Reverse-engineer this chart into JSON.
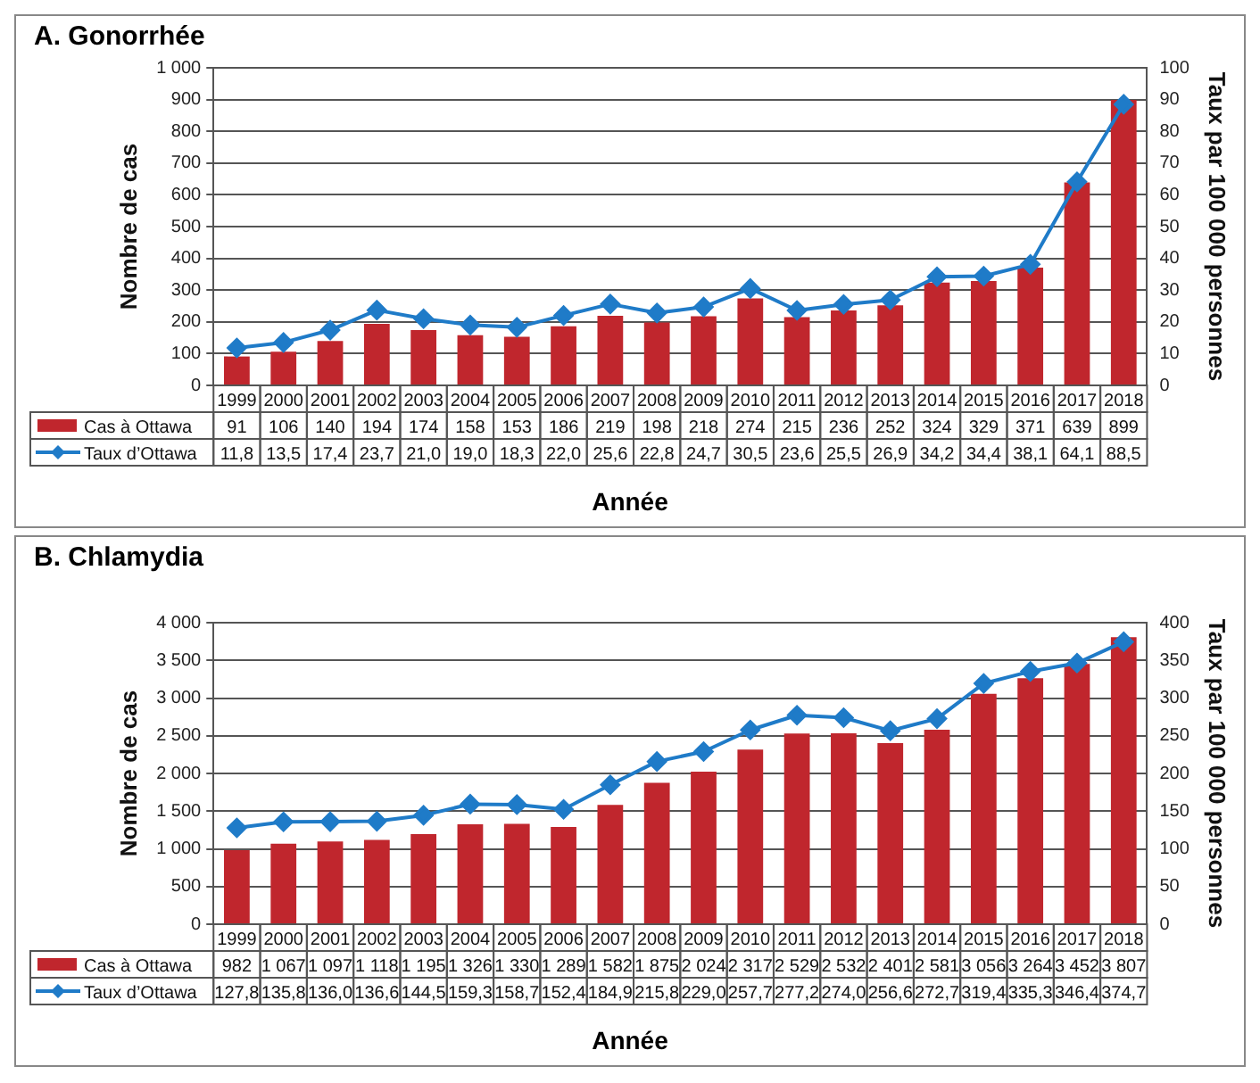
{
  "chart_data": [
    {
      "type": "bar",
      "title": "A. Gonorrhée",
      "xlabel": "Année",
      "ylabel": "Nombre de cas",
      "y2label": "Taux par 100 000 personnes",
      "categories": [
        "1999",
        "2000",
        "2001",
        "2002",
        "2003",
        "2004",
        "2005",
        "2006",
        "2007",
        "2008",
        "2009",
        "2010",
        "2011",
        "2012",
        "2013",
        "2014",
        "2015",
        "2016",
        "2017",
        "2018"
      ],
      "series": [
        {
          "name": "Cas à Ottawa",
          "color": "#c0262d",
          "values": [
            91,
            106,
            140,
            194,
            174,
            158,
            153,
            186,
            219,
            198,
            218,
            274,
            215,
            236,
            252,
            324,
            329,
            371,
            639,
            899
          ],
          "value_labels": [
            "91",
            "106",
            "140",
            "194",
            "174",
            "158",
            "153",
            "186",
            "219",
            "198",
            "218",
            "274",
            "215",
            "236",
            "252",
            "324",
            "329",
            "371",
            "639",
            "899"
          ]
        },
        {
          "name": "Taux d’Ottawa",
          "type": "line",
          "axis": "y2",
          "color": "#1f7bc8",
          "values": [
            11.8,
            13.5,
            17.4,
            23.7,
            21.0,
            19.0,
            18.3,
            22.0,
            25.6,
            22.8,
            24.7,
            30.5,
            23.6,
            25.5,
            26.9,
            34.2,
            34.4,
            38.1,
            64.1,
            88.5
          ],
          "value_labels": [
            "11,8",
            "13,5",
            "17,4",
            "23,7",
            "21,0",
            "19,0",
            "18,3",
            "22,0",
            "25,6",
            "22,8",
            "24,7",
            "30,5",
            "23,6",
            "25,5",
            "26,9",
            "34,2",
            "34,4",
            "38,1",
            "64,1",
            "88,5"
          ]
        }
      ],
      "ylim": [
        0,
        1000
      ],
      "yticks": [
        0,
        100,
        200,
        300,
        400,
        500,
        600,
        700,
        800,
        900,
        {
          "value": 1000,
          "label": "1 000"
        }
      ],
      "y2lim": [
        0,
        100
      ],
      "y2ticks": [
        0,
        10,
        20,
        30,
        40,
        50,
        60,
        70,
        80,
        90,
        100
      ],
      "grid": "y",
      "legend": "bottom",
      "marker": "diamond",
      "line_style": "solid"
    },
    {
      "type": "bar",
      "title": "B. Chlamydia",
      "xlabel": "Année",
      "ylabel": "Nombre de cas",
      "y2label": "Taux par 100 000 personnes",
      "categories": [
        "1999",
        "2000",
        "2001",
        "2002",
        "2003",
        "2004",
        "2005",
        "2006",
        "2007",
        "2008",
        "2009",
        "2010",
        "2011",
        "2012",
        "2013",
        "2014",
        "2015",
        "2016",
        "2017",
        "2018"
      ],
      "series": [
        {
          "name": "Cas à Ottawa",
          "color": "#c0262d",
          "values": [
            982,
            1067,
            1097,
            1118,
            1195,
            1326,
            1330,
            1289,
            1582,
            1875,
            2024,
            2317,
            2529,
            2532,
            2401,
            2581,
            3056,
            3264,
            3452,
            3807
          ],
          "value_labels": [
            "982",
            "1 067",
            "1 097",
            "1 118",
            "1 195",
            "1 326",
            "1 330",
            "1 289",
            "1 582",
            "1 875",
            "2 024",
            "2 317",
            "2 529",
            "2 532",
            "2 401",
            "2 581",
            "3 056",
            "3 264",
            "3 452",
            "3 807"
          ]
        },
        {
          "name": "Taux d’Ottawa",
          "type": "line",
          "axis": "y2",
          "color": "#1f7bc8",
          "values": [
            127.8,
            135.8,
            136.0,
            136.6,
            144.5,
            159.3,
            158.7,
            152.4,
            184.9,
            215.8,
            229.0,
            257.7,
            277.2,
            274.0,
            256.6,
            272.7,
            319.4,
            335.3,
            346.4,
            374.7
          ],
          "value_labels": [
            "127,8",
            "135,8",
            "136,0",
            "136,6",
            "144,5",
            "159,3",
            "158,7",
            "152,4",
            "184,9",
            "215,8",
            "229,0",
            "257,7",
            "277,2",
            "274,0",
            "256,6",
            "272,7",
            "319,4",
            "335,3",
            "346,4",
            "374,7"
          ]
        }
      ],
      "ylim": [
        0,
        4000
      ],
      "yticks": [
        0,
        {
          "value": 500,
          "label": "500"
        },
        {
          "value": 1000,
          "label": "1 000"
        },
        {
          "value": 1500,
          "label": "1 500"
        },
        {
          "value": 2000,
          "label": "2 000"
        },
        {
          "value": 2500,
          "label": "2 500"
        },
        {
          "value": 3000,
          "label": "3 000"
        },
        {
          "value": 3500,
          "label": "3 500"
        },
        {
          "value": 4000,
          "label": "4 000"
        }
      ],
      "y2lim": [
        0,
        400
      ],
      "y2ticks": [
        0,
        50,
        100,
        150,
        200,
        250,
        300,
        350,
        400
      ],
      "grid": "y",
      "legend": "bottom",
      "marker": "diamond",
      "line_style": "solid"
    }
  ]
}
